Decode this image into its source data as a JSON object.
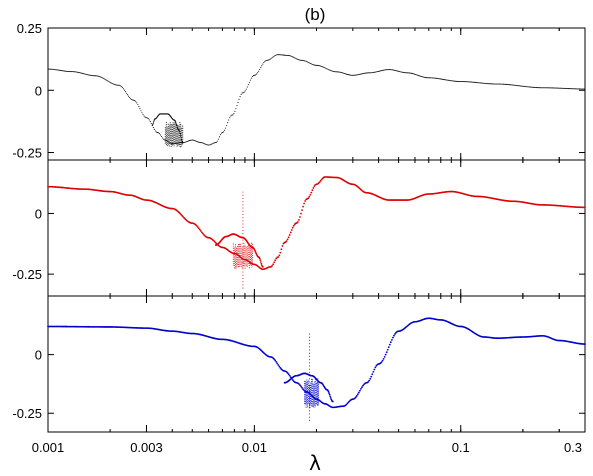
{
  "title": "(b)",
  "chart_data": {
    "type": "scatter",
    "title": "(b)",
    "xlabel": "λ",
    "ylabel": "",
    "xscale": "log",
    "xlim": [
      0.001,
      0.4
    ],
    "xticks": [
      0.001,
      0.003,
      0.01,
      0.1
    ],
    "xtick_labels": [
      "0.001",
      "0.003",
      "0.01",
      "0.1"
    ],
    "grid": false,
    "legend": "none",
    "panels": [
      {
        "name": "",
        "color": "#000000",
        "ylim": [
          -0.28,
          0.25
        ],
        "yticks": [
          0.25,
          0,
          -0.25
        ],
        "ytick_labels": [
          "0.25",
          "0",
          "-0.25"
        ],
        "curve": [
          [
            0.001,
            0.085
          ],
          [
            0.0013,
            0.075
          ],
          [
            0.0017,
            0.058
          ],
          [
            0.0022,
            0.02
          ],
          [
            0.0026,
            -0.04
          ],
          [
            0.003,
            -0.11
          ],
          [
            0.0034,
            -0.17
          ],
          [
            0.0037,
            -0.2
          ],
          [
            0.004,
            -0.215
          ],
          [
            0.0045,
            -0.21
          ],
          [
            0.005,
            -0.2
          ],
          [
            0.0055,
            -0.21
          ],
          [
            0.006,
            -0.22
          ],
          [
            0.0065,
            -0.21
          ],
          [
            0.007,
            -0.17
          ],
          [
            0.0078,
            -0.1
          ],
          [
            0.0088,
            -0.01
          ],
          [
            0.01,
            0.06
          ],
          [
            0.0115,
            0.12
          ],
          [
            0.013,
            0.143
          ],
          [
            0.0145,
            0.14
          ],
          [
            0.017,
            0.12
          ],
          [
            0.02,
            0.1
          ],
          [
            0.025,
            0.074
          ],
          [
            0.03,
            0.06
          ],
          [
            0.036,
            0.07
          ],
          [
            0.045,
            0.083
          ],
          [
            0.055,
            0.07
          ],
          [
            0.07,
            0.05
          ],
          [
            0.1,
            0.035
          ],
          [
            0.15,
            0.025
          ],
          [
            0.25,
            0.01
          ],
          [
            0.4,
            0.005
          ]
        ],
        "loop": [
          [
            0.0032,
            -0.14
          ],
          [
            0.0033,
            -0.115
          ],
          [
            0.0035,
            -0.095
          ],
          [
            0.0038,
            -0.095
          ],
          [
            0.0041,
            -0.12
          ],
          [
            0.0043,
            -0.16
          ],
          [
            0.0045,
            -0.21
          ]
        ],
        "chaos": {
          "xmin": 0.0037,
          "xmax": 0.0045,
          "ymin": -0.23,
          "ymax": -0.125
        },
        "spike": null
      },
      {
        "name": "",
        "color": "#dd0000",
        "ylim": [
          -0.34,
          0.22
        ],
        "yticks": [
          0,
          -0.25
        ],
        "ytick_labels": [
          "0",
          "-0.25"
        ],
        "curve": [
          [
            0.001,
            0.11
          ],
          [
            0.0015,
            0.1
          ],
          [
            0.002,
            0.09
          ],
          [
            0.0025,
            0.075
          ],
          [
            0.003,
            0.055
          ],
          [
            0.004,
            0.02
          ],
          [
            0.005,
            -0.04
          ],
          [
            0.006,
            -0.1
          ],
          [
            0.007,
            -0.14
          ],
          [
            0.008,
            -0.165
          ],
          [
            0.009,
            -0.19
          ],
          [
            0.01,
            -0.21
          ],
          [
            0.011,
            -0.23
          ],
          [
            0.012,
            -0.22
          ],
          [
            0.013,
            -0.18
          ],
          [
            0.014,
            -0.12
          ],
          [
            0.016,
            -0.04
          ],
          [
            0.018,
            0.06
          ],
          [
            0.02,
            0.12
          ],
          [
            0.022,
            0.15
          ],
          [
            0.025,
            0.148
          ],
          [
            0.03,
            0.12
          ],
          [
            0.035,
            0.085
          ],
          [
            0.045,
            0.055
          ],
          [
            0.055,
            0.055
          ],
          [
            0.07,
            0.08
          ],
          [
            0.09,
            0.09
          ],
          [
            0.12,
            0.07
          ],
          [
            0.18,
            0.05
          ],
          [
            0.25,
            0.035
          ],
          [
            0.4,
            0.025
          ]
        ],
        "loop": [
          [
            0.0065,
            -0.13
          ],
          [
            0.0073,
            -0.095
          ],
          [
            0.0079,
            -0.085
          ],
          [
            0.0088,
            -0.1
          ],
          [
            0.0098,
            -0.14
          ],
          [
            0.0105,
            -0.18
          ],
          [
            0.011,
            -0.22
          ]
        ],
        "chaos": {
          "xmin": 0.0079,
          "xmax": 0.0098,
          "ymin": -0.23,
          "ymax": -0.12
        },
        "spike": {
          "x": 0.0088,
          "ymin": -0.31,
          "ymax": 0.09
        }
      },
      {
        "name": "",
        "color": "#0000cc",
        "ylim": [
          -0.33,
          0.25
        ],
        "yticks": [
          0,
          -0.25
        ],
        "ytick_labels": [
          "0",
          "-0.25"
        ],
        "curve": [
          [
            0.001,
            0.12
          ],
          [
            0.002,
            0.118
          ],
          [
            0.003,
            0.113
          ],
          [
            0.004,
            0.1
          ],
          [
            0.005,
            0.09
          ],
          [
            0.007,
            0.065
          ],
          [
            0.01,
            0.035
          ],
          [
            0.012,
            -0.01
          ],
          [
            0.014,
            -0.07
          ],
          [
            0.016,
            -0.12
          ],
          [
            0.018,
            -0.16
          ],
          [
            0.02,
            -0.19
          ],
          [
            0.022,
            -0.21
          ],
          [
            0.024,
            -0.225
          ],
          [
            0.027,
            -0.22
          ],
          [
            0.03,
            -0.19
          ],
          [
            0.035,
            -0.12
          ],
          [
            0.04,
            -0.04
          ],
          [
            0.05,
            0.1
          ],
          [
            0.06,
            0.14
          ],
          [
            0.07,
            0.155
          ],
          [
            0.08,
            0.148
          ],
          [
            0.1,
            0.12
          ],
          [
            0.13,
            0.075
          ],
          [
            0.15,
            0.07
          ],
          [
            0.2,
            0.075
          ],
          [
            0.25,
            0.08
          ],
          [
            0.3,
            0.06
          ],
          [
            0.4,
            0.045
          ]
        ],
        "loop": [
          [
            0.014,
            -0.12
          ],
          [
            0.016,
            -0.09
          ],
          [
            0.0175,
            -0.08
          ],
          [
            0.019,
            -0.09
          ],
          [
            0.021,
            -0.12
          ],
          [
            0.0225,
            -0.15
          ],
          [
            0.024,
            -0.2
          ]
        ],
        "chaos": {
          "xmin": 0.0175,
          "xmax": 0.0205,
          "ymin": -0.23,
          "ymax": -0.1
        },
        "spike": {
          "x": 0.0185,
          "ymin": -0.29,
          "ymax": 0.09
        }
      }
    ]
  }
}
